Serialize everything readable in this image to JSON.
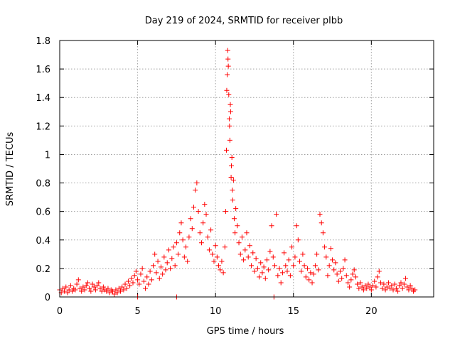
{
  "chart_data": {
    "type": "scatter",
    "title": "Day 219 of 2024, SRMTID for receiver plbb",
    "xlabel": "GPS time / hours",
    "ylabel": "SRMTID / TECUs",
    "xlim": [
      0,
      24
    ],
    "ylim": [
      0,
      1.8
    ],
    "grid": true,
    "marker": "+",
    "colors": {
      "points": "#ff0000",
      "grid": "#a0a0a0",
      "axis": "#000000"
    },
    "x_ticks": [
      0,
      5,
      10,
      15,
      20
    ],
    "x_tick_labels": [
      "0",
      "5",
      "10",
      "15",
      "20"
    ],
    "y_ticks": [
      0,
      0.2,
      0.4,
      0.6,
      0.8,
      1,
      1.2,
      1.4,
      1.6,
      1.8
    ],
    "y_tick_labels": [
      "0",
      "0.2",
      "0.4",
      "0.6",
      "0.8",
      "1",
      "1.2",
      "1.4",
      "1.6",
      "1.8"
    ],
    "series": [
      {
        "name": "SRMTID",
        "points": [
          [
            0.0,
            0.05
          ],
          [
            0.1,
            0.03
          ],
          [
            0.2,
            0.06
          ],
          [
            0.3,
            0.04
          ],
          [
            0.4,
            0.07
          ],
          [
            0.5,
            0.03
          ],
          [
            0.6,
            0.05
          ],
          [
            0.7,
            0.08
          ],
          [
            0.8,
            0.04
          ],
          [
            0.9,
            0.06
          ],
          [
            1.0,
            0.05
          ],
          [
            1.1,
            0.09
          ],
          [
            1.2,
            0.12
          ],
          [
            1.3,
            0.06
          ],
          [
            1.4,
            0.04
          ],
          [
            1.5,
            0.07
          ],
          [
            1.6,
            0.05
          ],
          [
            1.7,
            0.08
          ],
          [
            1.8,
            0.1
          ],
          [
            1.9,
            0.06
          ],
          [
            2.0,
            0.04
          ],
          [
            2.1,
            0.09
          ],
          [
            2.2,
            0.07
          ],
          [
            2.3,
            0.05
          ],
          [
            2.4,
            0.08
          ],
          [
            2.5,
            0.1
          ],
          [
            2.6,
            0.06
          ],
          [
            2.7,
            0.04
          ],
          [
            2.8,
            0.07
          ],
          [
            2.9,
            0.05
          ],
          [
            3.0,
            0.04
          ],
          [
            3.1,
            0.06
          ],
          [
            3.2,
            0.03
          ],
          [
            3.3,
            0.05
          ],
          [
            3.4,
            0.04
          ],
          [
            3.5,
            0.02
          ],
          [
            3.6,
            0.05
          ],
          [
            3.7,
            0.03
          ],
          [
            3.8,
            0.06
          ],
          [
            3.9,
            0.04
          ],
          [
            4.0,
            0.07
          ],
          [
            4.1,
            0.05
          ],
          [
            4.2,
            0.09
          ],
          [
            4.3,
            0.06
          ],
          [
            4.4,
            0.11
          ],
          [
            4.5,
            0.08
          ],
          [
            4.6,
            0.13
          ],
          [
            4.7,
            0.1
          ],
          [
            4.8,
            0.15
          ],
          [
            4.9,
            0.18
          ],
          [
            5.0,
            0.12
          ],
          [
            5.0,
            0.0
          ],
          [
            5.1,
            0.09
          ],
          [
            5.2,
            0.16
          ],
          [
            5.3,
            0.2
          ],
          [
            5.4,
            0.11
          ],
          [
            5.5,
            0.06
          ],
          [
            5.6,
            0.14
          ],
          [
            5.7,
            0.09
          ],
          [
            5.8,
            0.18
          ],
          [
            5.9,
            0.12
          ],
          [
            6.0,
            0.22
          ],
          [
            6.1,
            0.3
          ],
          [
            6.2,
            0.17
          ],
          [
            6.3,
            0.25
          ],
          [
            6.4,
            0.13
          ],
          [
            6.5,
            0.21
          ],
          [
            6.6,
            0.16
          ],
          [
            6.7,
            0.28
          ],
          [
            6.8,
            0.19
          ],
          [
            6.9,
            0.24
          ],
          [
            7.0,
            0.33
          ],
          [
            7.1,
            0.2
          ],
          [
            7.2,
            0.27
          ],
          [
            7.3,
            0.35
          ],
          [
            7.4,
            0.22
          ],
          [
            7.5,
            0.38
          ],
          [
            7.5,
            0.0
          ],
          [
            7.6,
            0.3
          ],
          [
            7.7,
            0.45
          ],
          [
            7.8,
            0.52
          ],
          [
            7.9,
            0.4
          ],
          [
            8.0,
            0.28
          ],
          [
            8.1,
            0.35
          ],
          [
            8.2,
            0.25
          ],
          [
            8.3,
            0.42
          ],
          [
            8.4,
            0.55
          ],
          [
            8.5,
            0.48
          ],
          [
            8.6,
            0.63
          ],
          [
            8.7,
            0.75
          ],
          [
            8.8,
            0.8
          ],
          [
            8.9,
            0.6
          ],
          [
            9.0,
            0.45
          ],
          [
            9.1,
            0.38
          ],
          [
            9.2,
            0.52
          ],
          [
            9.3,
            0.65
          ],
          [
            9.4,
            0.58
          ],
          [
            9.5,
            0.42
          ],
          [
            9.6,
            0.33
          ],
          [
            9.7,
            0.47
          ],
          [
            9.8,
            0.3
          ],
          [
            9.9,
            0.25
          ],
          [
            10.0,
            0.36
          ],
          [
            10.1,
            0.28
          ],
          [
            10.2,
            0.22
          ],
          [
            10.3,
            0.19
          ],
          [
            10.4,
            0.25
          ],
          [
            10.5,
            0.17
          ],
          [
            10.6,
            0.35
          ],
          [
            10.65,
            0.6
          ],
          [
            10.7,
            1.03
          ],
          [
            10.72,
            1.45
          ],
          [
            10.75,
            1.56
          ],
          [
            10.78,
            1.73
          ],
          [
            10.8,
            1.67
          ],
          [
            10.82,
            1.62
          ],
          [
            10.85,
            1.42
          ],
          [
            10.88,
            1.25
          ],
          [
            10.9,
            1.2
          ],
          [
            10.92,
            1.1
          ],
          [
            10.95,
            1.35
          ],
          [
            10.97,
            1.3
          ],
          [
            11.0,
            0.84
          ],
          [
            11.02,
            0.92
          ],
          [
            11.05,
            0.98
          ],
          [
            11.08,
            0.75
          ],
          [
            11.1,
            0.68
          ],
          [
            11.15,
            0.82
          ],
          [
            11.2,
            0.55
          ],
          [
            11.25,
            0.45
          ],
          [
            11.3,
            0.62
          ],
          [
            11.4,
            0.5
          ],
          [
            11.5,
            0.38
          ],
          [
            11.6,
            0.3
          ],
          [
            11.7,
            0.42
          ],
          [
            11.8,
            0.26
          ],
          [
            11.9,
            0.33
          ],
          [
            12.0,
            0.45
          ],
          [
            12.1,
            0.28
          ],
          [
            12.2,
            0.36
          ],
          [
            12.3,
            0.22
          ],
          [
            12.4,
            0.31
          ],
          [
            12.5,
            0.18
          ],
          [
            12.6,
            0.27
          ],
          [
            12.7,
            0.2
          ],
          [
            12.8,
            0.14
          ],
          [
            12.9,
            0.24
          ],
          [
            13.0,
            0.17
          ],
          [
            13.1,
            0.21
          ],
          [
            13.2,
            0.13
          ],
          [
            13.3,
            0.26
          ],
          [
            13.4,
            0.19
          ],
          [
            13.5,
            0.32
          ],
          [
            13.6,
            0.5
          ],
          [
            13.7,
            0.28
          ],
          [
            13.75,
            0.0
          ],
          [
            13.8,
            0.22
          ],
          [
            13.9,
            0.58
          ],
          [
            14.0,
            0.15
          ],
          [
            14.1,
            0.2
          ],
          [
            14.2,
            0.1
          ],
          [
            14.3,
            0.17
          ],
          [
            14.4,
            0.31
          ],
          [
            14.5,
            0.22
          ],
          [
            14.6,
            0.18
          ],
          [
            14.7,
            0.26
          ],
          [
            14.8,
            0.15
          ],
          [
            14.9,
            0.35
          ],
          [
            15.0,
            0.22
          ],
          [
            15.1,
            0.28
          ],
          [
            15.2,
            0.5
          ],
          [
            15.3,
            0.4
          ],
          [
            15.4,
            0.25
          ],
          [
            15.5,
            0.18
          ],
          [
            15.6,
            0.3
          ],
          [
            15.7,
            0.22
          ],
          [
            15.8,
            0.14
          ],
          [
            15.9,
            0.2
          ],
          [
            16.0,
            0.12
          ],
          [
            16.1,
            0.17
          ],
          [
            16.2,
            0.1
          ],
          [
            16.3,
            0.16
          ],
          [
            16.4,
            0.22
          ],
          [
            16.5,
            0.3
          ],
          [
            16.6,
            0.19
          ],
          [
            16.7,
            0.58
          ],
          [
            16.8,
            0.52
          ],
          [
            16.9,
            0.45
          ],
          [
            17.0,
            0.35
          ],
          [
            17.1,
            0.28
          ],
          [
            17.2,
            0.15
          ],
          [
            17.3,
            0.22
          ],
          [
            17.4,
            0.34
          ],
          [
            17.5,
            0.26
          ],
          [
            17.6,
            0.19
          ],
          [
            17.7,
            0.24
          ],
          [
            17.8,
            0.16
          ],
          [
            17.9,
            0.11
          ],
          [
            18.0,
            0.18
          ],
          [
            18.1,
            0.13
          ],
          [
            18.2,
            0.2
          ],
          [
            18.3,
            0.26
          ],
          [
            18.4,
            0.15
          ],
          [
            18.5,
            0.1
          ],
          [
            18.6,
            0.07
          ],
          [
            18.7,
            0.12
          ],
          [
            18.8,
            0.16
          ],
          [
            18.9,
            0.19
          ],
          [
            19.0,
            0.14
          ],
          [
            19.1,
            0.09
          ],
          [
            19.2,
            0.06
          ],
          [
            19.3,
            0.1
          ],
          [
            19.4,
            0.07
          ],
          [
            19.5,
            0.05
          ],
          [
            19.6,
            0.08
          ],
          [
            19.7,
            0.06
          ],
          [
            19.8,
            0.09
          ],
          [
            19.9,
            0.07
          ],
          [
            20.0,
            0.05
          ],
          [
            20.1,
            0.08
          ],
          [
            20.2,
            0.11
          ],
          [
            20.3,
            0.07
          ],
          [
            20.4,
            0.14
          ],
          [
            20.5,
            0.18
          ],
          [
            20.6,
            0.1
          ],
          [
            20.7,
            0.06
          ],
          [
            20.8,
            0.09
          ],
          [
            20.9,
            0.05
          ],
          [
            21.0,
            0.07
          ],
          [
            21.1,
            0.1
          ],
          [
            21.2,
            0.06
          ],
          [
            21.3,
            0.08
          ],
          [
            21.4,
            0.05
          ],
          [
            21.5,
            0.09
          ],
          [
            21.6,
            0.06
          ],
          [
            21.7,
            0.04
          ],
          [
            21.8,
            0.08
          ],
          [
            21.9,
            0.1
          ],
          [
            22.0,
            0.06
          ],
          [
            22.1,
            0.09
          ],
          [
            22.2,
            0.13
          ],
          [
            22.3,
            0.07
          ],
          [
            22.4,
            0.05
          ],
          [
            22.5,
            0.08
          ],
          [
            22.6,
            0.06
          ],
          [
            22.7,
            0.04
          ],
          [
            22.8,
            0.05
          ]
        ]
      }
    ]
  }
}
